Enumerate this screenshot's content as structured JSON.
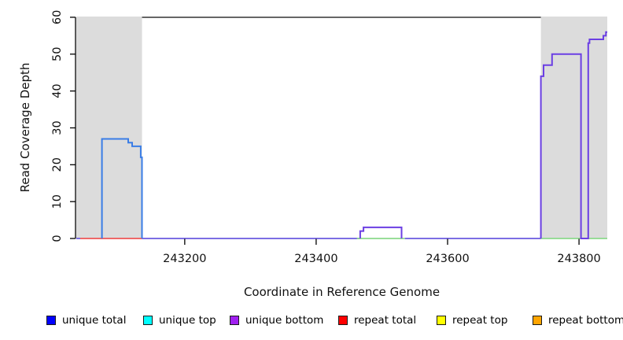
{
  "chart_data": {
    "type": "line",
    "style": "step-coverage-plot",
    "xlabel": "Coordinate in Reference Genome",
    "ylabel": "Read Coverage Depth",
    "xlim": [
      243035,
      243843
    ],
    "ylim": [
      0,
      60.2
    ],
    "x_ticks": [
      243200,
      243400,
      243600,
      243800
    ],
    "y_ticks": [
      0,
      10,
      20,
      30,
      40,
      50,
      60
    ],
    "grid": "off",
    "background_color": "#ffffff",
    "shaded_regions": [
      {
        "name": "left-repeat-region",
        "x0": 243035,
        "x1": 243135,
        "color": "#dcdcdc"
      },
      {
        "name": "right-repeat-region",
        "x0": 243742,
        "x1": 243843,
        "color": "#dcdcdc"
      }
    ],
    "top_boundary_line": {
      "x0": 243135,
      "x1": 243742,
      "y": 60.2,
      "color": "#666666"
    },
    "baseline_segments": [
      {
        "name": "violet-zero-left",
        "x0": 243035,
        "x1": 243041,
        "color": "#6a5ae0"
      },
      {
        "name": "red-zero-under-left-peak",
        "x0": 243041,
        "x1": 243135,
        "color": "#ee5555"
      },
      {
        "name": "violet-zero-mid-1",
        "x0": 243135,
        "x1": 243467,
        "color": "#6a5ae0"
      },
      {
        "name": "green-zero-under-mid-bump",
        "x0": 243462,
        "x1": 243535,
        "color": "#8cd98c"
      },
      {
        "name": "violet-zero-mid-2",
        "x0": 243535,
        "x1": 243742,
        "color": "#6a5ae0"
      },
      {
        "name": "green-zero-under-right-block",
        "x0": 243742,
        "x1": 243843,
        "color": "#8cd98c"
      }
    ],
    "series": [
      {
        "name": "left-peak-unique-total-top-blend",
        "color": "#3a7de6",
        "points": [
          [
            243074,
            0
          ],
          [
            243074,
            27
          ],
          [
            243114,
            27
          ],
          [
            243114,
            26
          ],
          [
            243120,
            26
          ],
          [
            243120,
            25
          ],
          [
            243133,
            25
          ],
          [
            243133,
            22
          ],
          [
            243135,
            22
          ],
          [
            243135,
            0
          ]
        ]
      },
      {
        "name": "middle-bump-unique-bottom-blend",
        "color": "#6b3fe3",
        "points": [
          [
            243467,
            0
          ],
          [
            243467,
            2
          ],
          [
            243472,
            2
          ],
          [
            243472,
            3
          ],
          [
            243530,
            3
          ],
          [
            243530,
            0
          ]
        ]
      },
      {
        "name": "right-block-unique-bottom-blend",
        "color": "#6b3fe3",
        "points": [
          [
            243742,
            0
          ],
          [
            243742,
            44
          ],
          [
            243746,
            44
          ],
          [
            243746,
            47
          ],
          [
            243759,
            47
          ],
          [
            243759,
            50
          ],
          [
            243803,
            50
          ],
          [
            243803,
            0
          ],
          [
            243814,
            0
          ],
          [
            243814,
            53
          ],
          [
            243816,
            53
          ],
          [
            243816,
            54
          ],
          [
            243837,
            54
          ],
          [
            243837,
            55
          ],
          [
            243841,
            55
          ],
          [
            243841,
            56
          ],
          [
            243843,
            56
          ]
        ]
      }
    ],
    "legend_position": "bottom-horizontal"
  },
  "axes": {
    "y_title": "Read Coverage Depth",
    "x_title": "Coordinate in Reference Genome"
  },
  "legend": {
    "items": [
      {
        "label": "unique total",
        "color": "#0000ff"
      },
      {
        "label": "unique top",
        "color": "#00ffff"
      },
      {
        "label": "unique bottom",
        "color": "#a020f0"
      },
      {
        "label": "repeat total",
        "color": "#ff0000"
      },
      {
        "label": "repeat top",
        "color": "#ffff00"
      },
      {
        "label": "repeat bottom",
        "color": "#ffa500"
      }
    ]
  }
}
